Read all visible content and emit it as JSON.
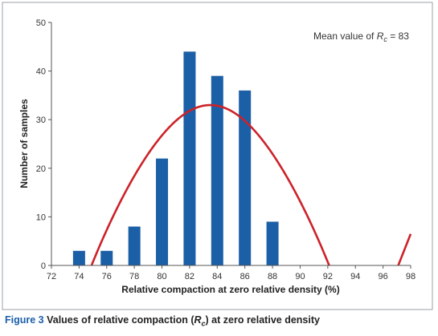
{
  "chart_data": {
    "type": "bar",
    "xlabel": "Relative compaction at zero relative density (%)",
    "ylabel": "Number of samples",
    "xlim": [
      72,
      98
    ],
    "ylim": [
      0,
      50
    ],
    "xticks": [
      "72",
      "74",
      "76",
      "78",
      "80",
      "82",
      "84",
      "86",
      "88",
      "90",
      "92",
      "94",
      "96",
      "98"
    ],
    "yticks": [
      "0",
      "10",
      "20",
      "30",
      "40",
      "50"
    ],
    "grid": false,
    "bars": {
      "x": [
        74,
        76,
        78,
        80,
        82,
        84,
        86,
        88
      ],
      "values": [
        3,
        3,
        8,
        22,
        44,
        39,
        36,
        9
      ],
      "color": "#1b5fa6"
    },
    "curve": {
      "type": "normal-distribution-fit",
      "mean": 83.5,
      "std": 4.3,
      "peak": 33,
      "color": "#cc2229"
    },
    "annotation": {
      "prefix": "Mean value of ",
      "symbol": "R",
      "subscript": "c",
      "suffix": " = 83"
    }
  },
  "caption": {
    "label": "Figure 3",
    "text_before": " Values of relative compaction (",
    "symbol": "R",
    "subscript": "c",
    "text_after": ") at zero relative density"
  }
}
